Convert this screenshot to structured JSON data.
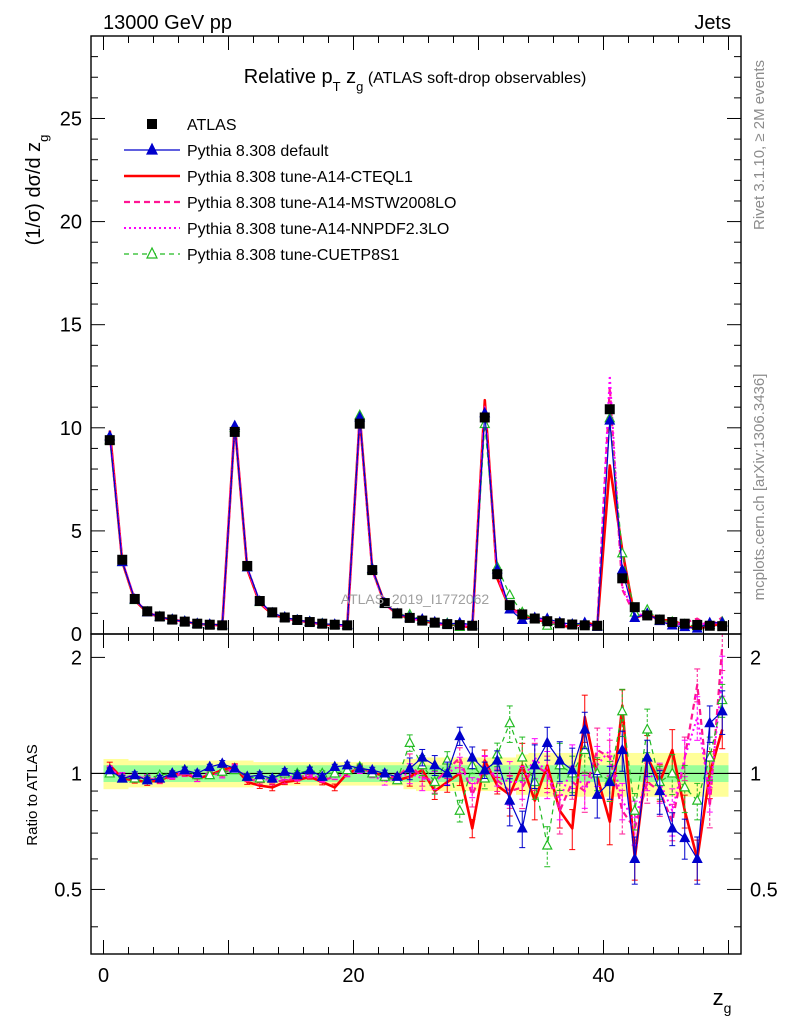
{
  "header": {
    "energy_label": "13000 GeV pp",
    "category_label": "Jets",
    "title_main": "Relative p",
    "title_sub_T": "T",
    "title_zg": " z",
    "title_sub_g": "g",
    "title_note": " (ATLAS soft-drop observables)",
    "side_top": "Rivet 3.1.10, ≥ 2M events",
    "side_bottom": "mcplots.cern.ch [arXiv:1306.3436]",
    "watermark": "ATLAS_2019_I1772062",
    "y_label_main": "(1/σ) dσ/d z",
    "y_label_sub": "g",
    "y_label_ratio": "Ratio to ATLAS",
    "x_label": "z",
    "x_label_sub": "g"
  },
  "legend": [
    {
      "label": "ATLAS",
      "color": "#000000",
      "style": "data"
    },
    {
      "label": "Pythia 8.308 default",
      "color": "#0000cc",
      "style": "solid-triangle"
    },
    {
      "label": "Pythia 8.308 tune-A14-CTEQL1",
      "color": "#ff0000",
      "style": "thick-solid"
    },
    {
      "label": "Pythia 8.308 tune-A14-MSTW2008LO",
      "color": "#ff1493",
      "style": "dashed"
    },
    {
      "label": "Pythia 8.308 tune-A14-NNPDF2.3LO",
      "color": "#ff00ff",
      "style": "dotted"
    },
    {
      "label": "Pythia 8.308 tune-CUETP8S1",
      "color": "#22bb22",
      "style": "dashed-open-triangle"
    }
  ],
  "chart_data": {
    "type": "line",
    "x_range": [
      -1,
      51
    ],
    "main_ylim": [
      0,
      29
    ],
    "ratio_ylim": [
      0.34,
      2.3
    ],
    "ratio_log": true,
    "main_yticks": [
      0,
      5,
      10,
      15,
      20,
      25
    ],
    "main_ytick_labels": [
      "0",
      "5",
      "10",
      "15",
      "20",
      "25"
    ],
    "ratio_yticks": [
      0.5,
      1,
      2
    ],
    "ratio_ytick_labels": [
      "0.5",
      "1",
      "2"
    ],
    "xticks": [
      0,
      20,
      40
    ],
    "xtick_labels": [
      "0",
      "20",
      "40"
    ],
    "x": [
      0.5,
      1.5,
      2.5,
      3.5,
      4.5,
      5.5,
      6.5,
      7.5,
      8.5,
      9.5,
      10.5,
      11.5,
      12.5,
      13.5,
      14.5,
      15.5,
      16.5,
      17.5,
      18.5,
      19.5,
      20.5,
      21.5,
      22.5,
      23.5,
      24.5,
      25.5,
      26.5,
      27.5,
      28.5,
      29.5,
      30.5,
      31.5,
      32.5,
      33.5,
      34.5,
      35.5,
      36.5,
      37.5,
      38.5,
      39.5,
      40.5,
      41.5,
      42.5,
      43.5,
      44.5,
      45.5,
      46.5,
      47.5,
      48.5,
      49.5
    ],
    "data": [
      9.4,
      3.6,
      1.7,
      1.1,
      0.85,
      0.7,
      0.6,
      0.5,
      0.45,
      0.42,
      9.8,
      3.3,
      1.6,
      1.05,
      0.8,
      0.68,
      0.58,
      0.5,
      0.45,
      0.42,
      10.2,
      3.1,
      1.5,
      1.0,
      0.78,
      0.65,
      0.55,
      0.48,
      0.43,
      0.4,
      10.5,
      2.9,
      1.4,
      0.95,
      0.75,
      0.62,
      0.52,
      0.46,
      0.42,
      0.4,
      10.9,
      2.7,
      1.3,
      0.9,
      0.7,
      0.58,
      0.5,
      0.44,
      0.4,
      0.38
    ],
    "band_green": 0.05,
    "band_yellow": [
      0.09,
      0.09,
      0.08,
      0.08,
      0.08,
      0.08,
      0.08,
      0.08,
      0.08,
      0.08,
      0.08,
      0.08,
      0.07,
      0.07,
      0.07,
      0.07,
      0.07,
      0.07,
      0.07,
      0.07,
      0.07,
      0.07,
      0.07,
      0.07,
      0.09,
      0.1,
      0.1,
      0.1,
      0.1,
      0.1,
      0.1,
      0.1,
      0.1,
      0.12,
      0.13,
      0.13,
      0.13,
      0.13,
      0.13,
      0.13,
      0.13,
      0.13,
      0.13,
      0.13,
      0.13,
      0.13,
      0.13,
      0.13,
      0.13,
      0.13
    ],
    "series": [
      {
        "name": "Pythia 8.308 default",
        "color": "#0000cc",
        "ratio": [
          1.02,
          0.97,
          0.99,
          0.96,
          0.97,
          1.0,
          1.02,
          1.0,
          1.04,
          1.06,
          1.03,
          0.98,
          0.99,
          0.97,
          1.01,
          0.99,
          1.02,
          0.98,
          1.04,
          1.05,
          1.03,
          1.02,
          1.0,
          0.98,
          1.03,
          1.1,
          1.05,
          1.0,
          1.25,
          1.1,
          1.02,
          1.08,
          0.85,
          0.72,
          1.05,
          1.2,
          1.08,
          1.02,
          1.3,
          0.88,
          0.95,
          1.15,
          0.6,
          1.1,
          0.9,
          0.72,
          0.68,
          0.6,
          1.35,
          1.45
        ]
      },
      {
        "name": "Pythia 8.308 tune-A14-CTEQL1",
        "color": "#ff0000",
        "ratio": [
          1.05,
          0.97,
          0.96,
          0.95,
          0.96,
          0.99,
          1.0,
          0.97,
          0.99,
          1.02,
          1.04,
          0.95,
          0.93,
          0.92,
          0.95,
          0.96,
          0.98,
          0.95,
          0.92,
          1.0,
          1.03,
          1.01,
          0.98,
          0.96,
          0.98,
          1.02,
          0.9,
          0.95,
          1.0,
          0.72,
          1.08,
          0.93,
          0.88,
          1.05,
          0.85,
          1.05,
          0.8,
          0.72,
          1.4,
          0.98,
          0.75,
          1.5,
          0.6,
          1.1,
          0.95,
          1.15,
          0.8,
          0.6,
          1.0,
          1.3
        ]
      },
      {
        "name": "Pythia 8.308 tune-A14-MSTW2008LO",
        "color": "#ff1493",
        "ratio": [
          1.03,
          0.98,
          0.98,
          0.97,
          0.96,
          0.98,
          1.0,
          0.98,
          1.0,
          1.0,
          1.04,
          0.97,
          0.95,
          0.95,
          0.96,
          0.97,
          1.0,
          0.96,
          0.98,
          1.0,
          1.04,
          1.0,
          0.98,
          0.98,
          1.05,
          0.98,
          0.95,
          1.02,
          1.1,
          0.88,
          1.05,
          0.96,
          0.9,
          0.92,
          1.05,
          1.0,
          0.8,
          0.95,
          0.9,
          1.15,
          1.1,
          0.8,
          0.72,
          0.95,
          0.9,
          0.75,
          1.1,
          1.7,
          0.82,
          2.15
        ]
      },
      {
        "name": "Pythia 8.308 tune-A14-NNPDF2.3LO",
        "color": "#ff00ff",
        "ratio": [
          1.02,
          0.99,
          0.98,
          0.98,
          0.97,
          0.99,
          1.01,
          0.97,
          1.0,
          0.99,
          1.03,
          0.98,
          0.97,
          0.96,
          0.98,
          0.98,
          0.99,
          0.97,
          0.98,
          1.0,
          1.02,
          0.99,
          0.95,
          0.98,
          1.0,
          0.97,
          0.96,
          1.0,
          1.05,
          0.92,
          1.04,
          0.98,
          0.95,
          0.95,
          1.1,
          1.0,
          0.85,
          1.05,
          0.9,
          1.05,
          1.15,
          0.85,
          0.75,
          1.0,
          0.95,
          0.8,
          1.1,
          1.4,
          0.88,
          1.8
        ]
      },
      {
        "name": "Pythia 8.308 tune-CUETP8S1",
        "color": "#22bb22",
        "ratio": [
          1.0,
          0.97,
          0.97,
          0.97,
          0.99,
          1.0,
          1.02,
          0.99,
          0.99,
          1.01,
          1.02,
          0.98,
          0.97,
          0.97,
          1.0,
          1.0,
          1.02,
          1.0,
          1.0,
          1.02,
          1.04,
          1.0,
          0.98,
          0.96,
          1.2,
          1.05,
          0.95,
          1.08,
          0.8,
          1.05,
          0.97,
          1.12,
          1.35,
          1.1,
          0.95,
          0.65,
          1.05,
          1.0,
          1.15,
          1.0,
          0.96,
          1.45,
          0.8,
          1.3,
          0.95,
          1.0,
          0.92,
          0.85,
          1.1,
          1.55
        ]
      }
    ]
  }
}
